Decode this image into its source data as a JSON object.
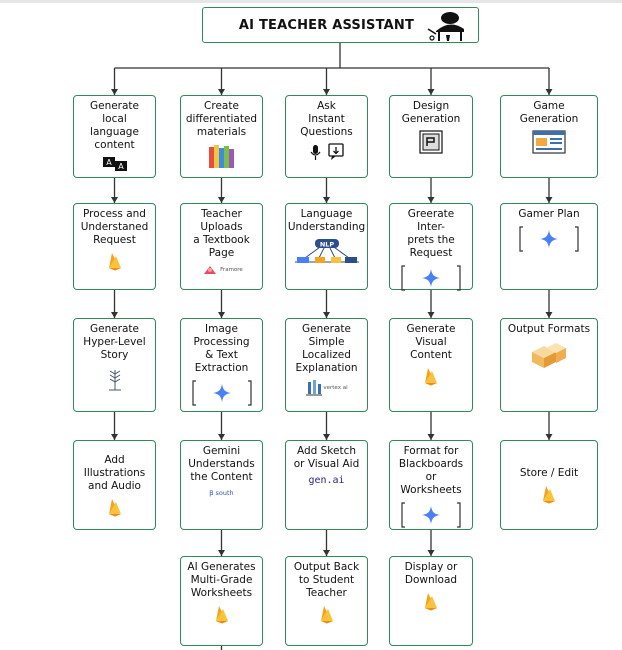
{
  "title": "AI TEACHER ASSISTANT",
  "columns": [
    {
      "steps": [
        {
          "label": "Generate local\nlanguage\ncontent",
          "icon": "translate-icon"
        },
        {
          "label": "Process and\nUnderstaned\nRequest",
          "icon": "firebase-icon"
        },
        {
          "label": "Generate\nHyper-Level\nStory",
          "icon": "wheat-icon"
        },
        {
          "label": "Add Illustrations\nand Audio",
          "icon": "firebase-icon"
        }
      ]
    },
    {
      "steps": [
        {
          "label": "Create\ndifferentiated\nmaterials",
          "icon": "books-icon"
        },
        {
          "label": "Teacher Uploads\na Textbook Page",
          "icon": "framer-logo-icon",
          "logo_text": "Framore"
        },
        {
          "label": "Image Processing\n& Text Extraction",
          "icon": "gemini-icon"
        },
        {
          "label": "Gemini\nUnderstands\nthe Content",
          "icon": "gsouth-logo-icon",
          "logo_text": "Ꞵ south"
        },
        {
          "label": "AI Generates\nMulti-Grade\nWorksheets",
          "icon": "firebase-icon"
        }
      ]
    },
    {
      "steps": [
        {
          "label": "Ask\nInstant\nQuestions",
          "icon": "mic-chat-icon"
        },
        {
          "label": "Language\nUnderstanding",
          "icon": "nlp-network-icon",
          "logo_text": "NLP"
        },
        {
          "label": "Generate Simple\nLocalized\nExplanation",
          "icon": "building-icon",
          "logo_text": "vertex ai"
        },
        {
          "label": "Add Sketch\nor Visual Aid",
          "icon": "genai-logo-icon",
          "logo_text": "gen.ai"
        },
        {
          "label": "Output Back\nto Student Teacher",
          "icon": "firebase-icon"
        }
      ]
    },
    {
      "steps": [
        {
          "label": "Design\nGeneration",
          "icon": "design-doc-icon"
        },
        {
          "label": "Greerate Inter-\nprets the\nRequest",
          "icon": "gemini-icon"
        },
        {
          "label": "Generate\nVisual Content",
          "icon": "firebase-icon"
        },
        {
          "label": "Format for\nBlackboards or\nWorksheets",
          "icon": "gemini-icon"
        },
        {
          "label": "Display or\nDownload",
          "icon": "firebase-icon"
        }
      ]
    },
    {
      "steps": [
        {
          "label": "Game\nGeneration",
          "icon": "game-screen-icon"
        },
        {
          "label": "Gamer Plan",
          "icon": "gemini-icon"
        },
        {
          "label": "Output Formats",
          "icon": "cubes-icon"
        },
        {
          "label": "Store / Edit",
          "icon": "firebase-icon"
        }
      ]
    }
  ],
  "colors": {
    "border": "#2e8b57",
    "arrow": "#333333",
    "gemini": "#4a80f5",
    "firebase": "#f6a21a"
  }
}
